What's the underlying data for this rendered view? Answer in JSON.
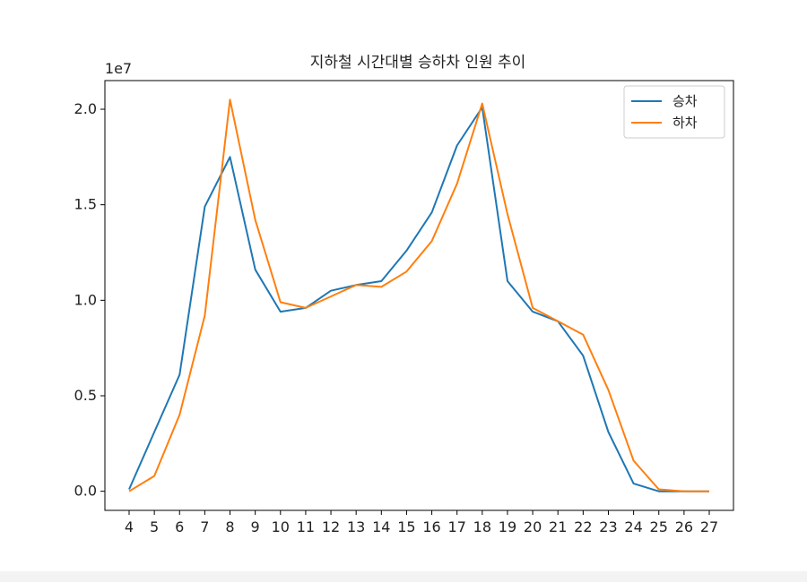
{
  "chart_data": {
    "type": "line",
    "title": "지하철 시간대별 승하차 인원 추이",
    "xlabel": "",
    "ylabel": "",
    "y_offset_label": "1e7",
    "x": [
      "4",
      "5",
      "6",
      "7",
      "8",
      "9",
      "10",
      "11",
      "12",
      "13",
      "14",
      "15",
      "16",
      "17",
      "18",
      "19",
      "20",
      "21",
      "22",
      "23",
      "24",
      "25",
      "26",
      "27"
    ],
    "ylim": [
      -0.1,
      2.15
    ],
    "yticks": [
      "0.0",
      "0.5",
      "1.0",
      "1.5",
      "2.0"
    ],
    "ytick_values": [
      0.0,
      0.5,
      1.0,
      1.5,
      2.0
    ],
    "grid": false,
    "legend_position": "top-right",
    "series": [
      {
        "name": "승차",
        "color": "#1f77b4",
        "values": [
          0.01,
          0.31,
          0.61,
          1.49,
          1.75,
          1.16,
          0.94,
          0.96,
          1.05,
          1.08,
          1.1,
          1.26,
          1.46,
          1.81,
          2.01,
          1.1,
          0.94,
          0.89,
          0.71,
          0.31,
          0.04,
          0.0,
          0.0,
          0.0
        ]
      },
      {
        "name": "하차",
        "color": "#ff7f0e",
        "values": [
          0.0,
          0.08,
          0.4,
          0.92,
          2.05,
          1.42,
          0.99,
          0.96,
          1.02,
          1.08,
          1.07,
          1.15,
          1.31,
          1.61,
          2.03,
          1.45,
          0.96,
          0.89,
          0.82,
          0.53,
          0.16,
          0.01,
          0.0,
          0.0
        ]
      }
    ]
  }
}
